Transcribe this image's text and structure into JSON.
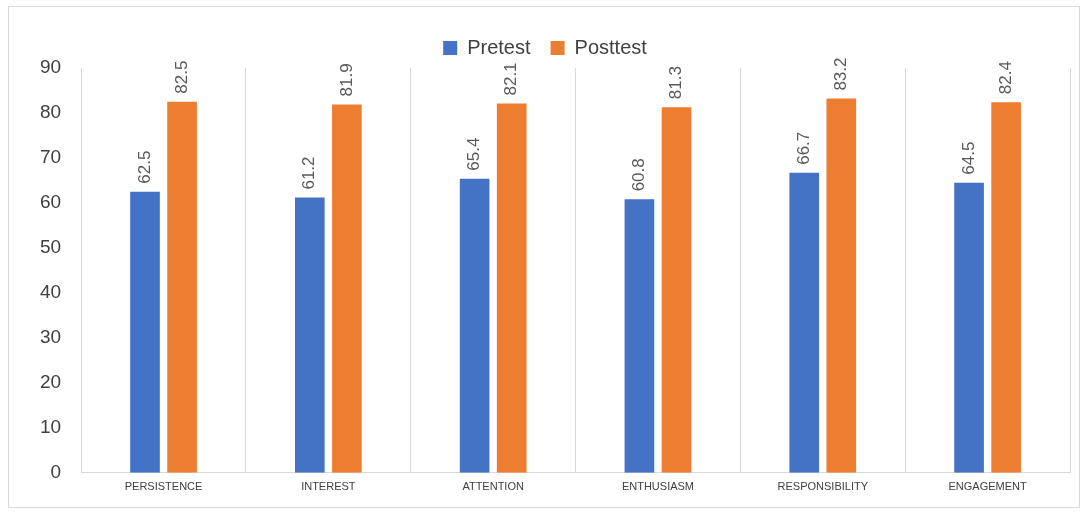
{
  "chart_data": {
    "type": "bar",
    "categories": [
      "PERSISTENCE",
      "INTEREST",
      "ATTENTION",
      "ENTHUSIASM",
      "RESPONSIBILITY",
      "ENGAGEMENT"
    ],
    "series": [
      {
        "name": "Pretest",
        "color": "#4472c4",
        "values": [
          62.5,
          61.2,
          65.4,
          60.8,
          66.7,
          64.5
        ]
      },
      {
        "name": "Posttest",
        "color": "#ed7d31",
        "values": [
          82.5,
          81.9,
          82.1,
          81.3,
          83.2,
          82.4
        ]
      }
    ],
    "ylim": [
      0,
      90
    ],
    "yticks": [
      0,
      10,
      20,
      30,
      40,
      50,
      60,
      70,
      80,
      90
    ],
    "grid": "x",
    "legend": "top",
    "data_labels": true
  }
}
